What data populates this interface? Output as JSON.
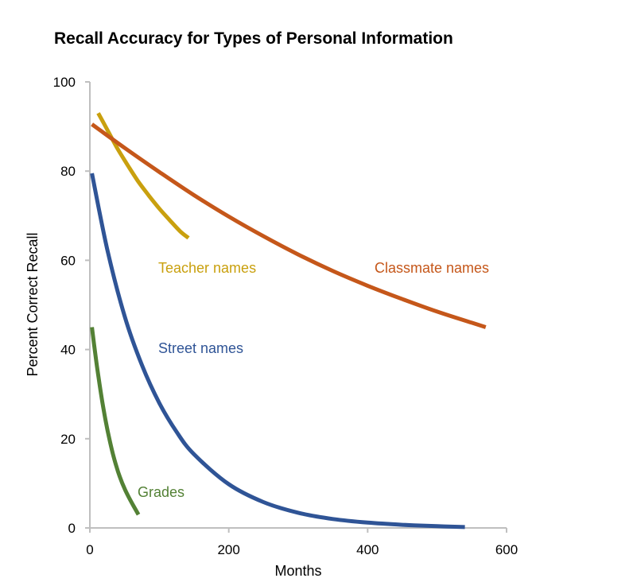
{
  "chart_data": {
    "type": "line",
    "title": "Recall Accuracy for Types of Personal Information",
    "xlabel": "Months",
    "ylabel": "Percent Correct Recall",
    "xlim": [
      0,
      600
    ],
    "ylim": [
      0,
      100
    ],
    "xticks": [
      0,
      200,
      400,
      600
    ],
    "yticks": [
      0,
      20,
      40,
      60,
      80,
      100
    ],
    "grid": false,
    "legend": "none",
    "series": [
      {
        "name": "Teacher names",
        "color": "#C9A00E",
        "x": [
          12,
          25,
          40,
          55,
          70,
          85,
          100,
          115,
          130,
          142
        ],
        "y": [
          93,
          89.3,
          85,
          81.2,
          77.6,
          74.5,
          71.6,
          69,
          66.5,
          65
        ]
      },
      {
        "name": "Classmate names",
        "color": "#C5571A",
        "x": [
          3,
          50,
          100,
          150,
          200,
          250,
          300,
          350,
          400,
          450,
          500,
          550,
          570
        ],
        "y": [
          90.5,
          85.2,
          79.8,
          74.6,
          69.8,
          65.4,
          61.3,
          57.6,
          54.3,
          51.3,
          48.5,
          46,
          45
        ]
      },
      {
        "name": "Street names",
        "color": "#2F5496",
        "x": [
          3,
          25,
          50,
          75,
          100,
          125,
          150,
          200,
          250,
          300,
          350,
          400,
          450,
          500,
          540
        ],
        "y": [
          79.5,
          62.5,
          47.5,
          36.5,
          28,
          21.5,
          16.5,
          9.8,
          5.8,
          3.4,
          2,
          1.2,
          0.7,
          0.4,
          0.2
        ]
      },
      {
        "name": "Grades",
        "color": "#538135",
        "x": [
          3,
          8,
          13,
          18,
          23,
          28,
          33,
          38,
          43,
          50,
          57,
          63,
          70
        ],
        "y": [
          45,
          38.8,
          33.2,
          28.2,
          23.8,
          20,
          16.7,
          13.9,
          11.5,
          8.8,
          6.6,
          4.9,
          3
        ]
      }
    ]
  }
}
